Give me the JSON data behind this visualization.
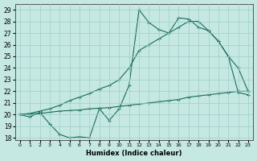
{
  "xlabel": "Humidex (Indice chaleur)",
  "xlim": [
    -0.5,
    23.5
  ],
  "ylim": [
    17.8,
    29.5
  ],
  "yticks": [
    18,
    19,
    20,
    21,
    22,
    23,
    24,
    25,
    26,
    27,
    28,
    29
  ],
  "xticks": [
    0,
    1,
    2,
    3,
    4,
    5,
    6,
    7,
    8,
    9,
    10,
    11,
    12,
    13,
    14,
    15,
    16,
    17,
    18,
    19,
    20,
    21,
    22,
    23
  ],
  "bg_color": "#c5e8e2",
  "grid_color": "#9dceca",
  "line_color": "#1a6b5a",
  "line1_x": [
    0,
    1,
    2,
    3,
    4,
    5,
    6,
    7,
    8,
    9,
    10,
    11,
    12,
    13,
    14,
    15,
    16,
    17,
    18,
    19,
    20,
    21,
    22,
    23
  ],
  "line1_y": [
    20.0,
    19.8,
    20.2,
    19.2,
    18.3,
    18.0,
    18.1,
    18.0,
    20.5,
    19.5,
    20.5,
    22.5,
    29.0,
    27.9,
    27.3,
    27.0,
    28.3,
    28.2,
    27.5,
    27.2,
    26.3,
    25.0,
    21.9,
    21.7
  ],
  "line2_x": [
    0,
    1,
    2,
    3,
    4,
    5,
    6,
    7,
    8,
    9,
    10,
    11,
    12,
    13,
    14,
    15,
    16,
    17,
    18,
    19,
    20,
    21,
    22,
    23
  ],
  "line2_y": [
    20.0,
    20.1,
    20.3,
    20.5,
    20.8,
    21.2,
    21.5,
    21.8,
    22.2,
    22.5,
    23.0,
    24.0,
    25.5,
    26.0,
    26.5,
    27.0,
    27.5,
    28.0,
    28.0,
    27.2,
    26.3,
    25.0,
    24.0,
    22.0
  ],
  "line3_x": [
    0,
    1,
    2,
    3,
    4,
    5,
    6,
    7,
    8,
    9,
    10,
    11,
    12,
    13,
    14,
    15,
    16,
    17,
    18,
    19,
    20,
    21,
    22,
    23
  ],
  "line3_y": [
    20.0,
    20.05,
    20.1,
    20.2,
    20.3,
    20.35,
    20.4,
    20.5,
    20.55,
    20.6,
    20.7,
    20.8,
    20.9,
    21.0,
    21.1,
    21.2,
    21.3,
    21.5,
    21.6,
    21.7,
    21.8,
    21.9,
    22.0,
    22.0
  ]
}
